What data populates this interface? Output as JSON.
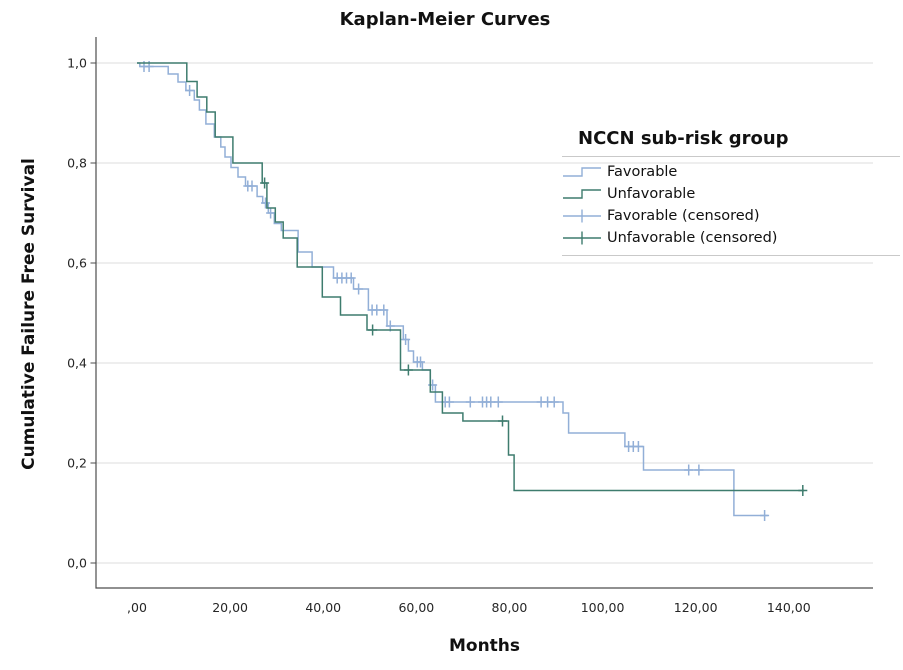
{
  "title": "Kaplan-Meier Curves",
  "y_axis_title": "Cumulative Failure Free Survival",
  "x_axis_title": "Months",
  "legend": {
    "title": "NCCN sub-risk group",
    "items": [
      {
        "label": "Favorable",
        "symbol": "step-line",
        "color_ref": "favorable"
      },
      {
        "label": "Unfavorable",
        "symbol": "step-line",
        "color_ref": "unfavorable"
      },
      {
        "label": "Favorable (censored)",
        "symbol": "plus-line",
        "color_ref": "favorable"
      },
      {
        "label": "Unfavorable (censored)",
        "symbol": "plus-line",
        "color_ref": "unfavorable"
      }
    ]
  },
  "colors": {
    "favorable": "#92AFD7",
    "unfavorable": "#3E7C6E",
    "grid": "#DCDCDC",
    "axis": "#4D4D4D",
    "tick_text": "#262626",
    "legend_separator": "#C9C9C9"
  },
  "chart_data": {
    "type": "line",
    "variant": "kaplan-meier-step",
    "title": "Kaplan-Meier Curves",
    "xlabel": "Months",
    "ylabel": "Cumulative Failure Free Survival",
    "xlim": [
      -9,
      158
    ],
    "ylim": [
      -0.05,
      1.05
    ],
    "grid": "horizontal-only",
    "legend_position": "inside-right",
    "x_ticks": [
      {
        "value": 0,
        "label": ",00"
      },
      {
        "value": 20,
        "label": "20,00"
      },
      {
        "value": 40,
        "label": "40,00"
      },
      {
        "value": 60,
        "label": "60,00"
      },
      {
        "value": 80,
        "label": "80,00"
      },
      {
        "value": 100,
        "label": "100,00"
      },
      {
        "value": 120,
        "label": "120,00"
      },
      {
        "value": 140,
        "label": "140,00"
      }
    ],
    "y_ticks": [
      {
        "value": 0.0,
        "label": "0,0"
      },
      {
        "value": 0.2,
        "label": "0,2"
      },
      {
        "value": 0.4,
        "label": "0,4"
      },
      {
        "value": 0.6,
        "label": "0,6"
      },
      {
        "value": 0.8,
        "label": "0,8"
      },
      {
        "value": 1.0,
        "label": "1,0"
      }
    ],
    "series": [
      {
        "name": "Favorable",
        "color": "#92AFD7",
        "end_month": 135.5,
        "steps": [
          [
            0,
            1.0
          ],
          [
            0.6,
            0.993
          ],
          [
            6.7,
            0.978
          ],
          [
            8.8,
            0.962
          ],
          [
            10.5,
            0.945
          ],
          [
            12.3,
            0.926
          ],
          [
            13.4,
            0.906
          ],
          [
            14.8,
            0.878
          ],
          [
            16.6,
            0.852
          ],
          [
            18.0,
            0.832
          ],
          [
            18.9,
            0.812
          ],
          [
            20.2,
            0.791
          ],
          [
            21.7,
            0.772
          ],
          [
            23.3,
            0.754
          ],
          [
            25.8,
            0.733
          ],
          [
            27.0,
            0.72
          ],
          [
            28.2,
            0.7
          ],
          [
            29.5,
            0.679
          ],
          [
            31.0,
            0.665
          ],
          [
            34.6,
            0.622
          ],
          [
            37.6,
            0.592
          ],
          [
            42.2,
            0.57
          ],
          [
            46.5,
            0.548
          ],
          [
            49.7,
            0.506
          ],
          [
            53.7,
            0.474
          ],
          [
            57.2,
            0.447
          ],
          [
            58.3,
            0.424
          ],
          [
            59.4,
            0.402
          ],
          [
            61.3,
            0.386
          ],
          [
            63.0,
            0.356
          ],
          [
            64.1,
            0.322
          ],
          [
            91.5,
            0.3
          ],
          [
            92.7,
            0.26
          ],
          [
            104.8,
            0.233
          ],
          [
            108.8,
            0.186
          ],
          [
            128.2,
            0.095
          ]
        ],
        "censored": [
          [
            1.5,
            0.993
          ],
          [
            2.6,
            0.993
          ],
          [
            11.3,
            0.945
          ],
          [
            23.8,
            0.754
          ],
          [
            24.7,
            0.754
          ],
          [
            27.6,
            0.72
          ],
          [
            28.7,
            0.7
          ],
          [
            43.0,
            0.57
          ],
          [
            44.0,
            0.57
          ],
          [
            45.0,
            0.57
          ],
          [
            46.0,
            0.57
          ],
          [
            47.6,
            0.548
          ],
          [
            50.5,
            0.506
          ],
          [
            51.5,
            0.506
          ],
          [
            53.0,
            0.506
          ],
          [
            54.4,
            0.474
          ],
          [
            57.7,
            0.447
          ],
          [
            60.2,
            0.402
          ],
          [
            60.9,
            0.402
          ],
          [
            63.5,
            0.356
          ],
          [
            66.2,
            0.322
          ],
          [
            67.1,
            0.322
          ],
          [
            71.6,
            0.322
          ],
          [
            74.2,
            0.322
          ],
          [
            75.1,
            0.322
          ],
          [
            76.0,
            0.322
          ],
          [
            77.6,
            0.322
          ],
          [
            86.8,
            0.322
          ],
          [
            88.2,
            0.322
          ],
          [
            89.6,
            0.322
          ],
          [
            105.6,
            0.233
          ],
          [
            106.6,
            0.233
          ],
          [
            107.7,
            0.233
          ],
          [
            118.5,
            0.186
          ],
          [
            120.7,
            0.186
          ],
          [
            134.8,
            0.095
          ]
        ]
      },
      {
        "name": "Unfavorable",
        "color": "#3E7C6E",
        "end_month": 143.3,
        "steps": [
          [
            0,
            1.0
          ],
          [
            10.7,
            0.963
          ],
          [
            12.9,
            0.932
          ],
          [
            15.0,
            0.902
          ],
          [
            16.8,
            0.852
          ],
          [
            20.6,
            0.8
          ],
          [
            26.9,
            0.76
          ],
          [
            27.9,
            0.71
          ],
          [
            29.7,
            0.682
          ],
          [
            31.4,
            0.65
          ],
          [
            34.4,
            0.592
          ],
          [
            39.8,
            0.532
          ],
          [
            43.7,
            0.496
          ],
          [
            49.4,
            0.466
          ],
          [
            56.6,
            0.386
          ],
          [
            63.0,
            0.342
          ],
          [
            65.6,
            0.3
          ],
          [
            70.0,
            0.284
          ],
          [
            79.8,
            0.216
          ],
          [
            81.0,
            0.145
          ]
        ],
        "censored": [
          [
            27.4,
            0.76
          ],
          [
            50.6,
            0.466
          ],
          [
            58.3,
            0.386
          ],
          [
            78.5,
            0.284
          ],
          [
            143.0,
            0.145
          ]
        ]
      }
    ]
  }
}
